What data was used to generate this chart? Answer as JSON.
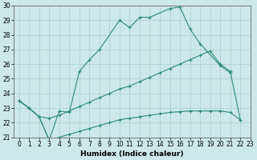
{
  "xlabel": "Humidex (Indice chaleur)",
  "series": {
    "upper": {
      "x": [
        0,
        1,
        2,
        3,
        4,
        5,
        6,
        7,
        8,
        10,
        11,
        12,
        13,
        15,
        16,
        17,
        18,
        20,
        21
      ],
      "y": [
        23.5,
        23.0,
        22.4,
        20.8,
        22.8,
        22.7,
        25.5,
        26.3,
        27.0,
        29.0,
        28.5,
        29.2,
        29.2,
        29.8,
        29.9,
        28.4,
        27.4,
        25.9,
        25.4
      ]
    },
    "mid": {
      "x": [
        0,
        1,
        2,
        3,
        4,
        5,
        6,
        7,
        8,
        9,
        10,
        11,
        12,
        13,
        14,
        15,
        16,
        17,
        18,
        19,
        20,
        21,
        22
      ],
      "y": [
        23.5,
        23.0,
        22.4,
        22.3,
        22.5,
        22.8,
        23.1,
        23.4,
        23.7,
        24.0,
        24.3,
        24.5,
        24.8,
        25.1,
        25.4,
        25.7,
        26.0,
        26.3,
        26.6,
        26.9,
        26.0,
        25.5,
        22.2
      ]
    },
    "lower": {
      "x": [
        0,
        1,
        2,
        3,
        4,
        5,
        6,
        7,
        8,
        9,
        10,
        11,
        12,
        13,
        14,
        15,
        16,
        17,
        18,
        19,
        20,
        21,
        22
      ],
      "y": [
        23.5,
        23.0,
        22.4,
        20.8,
        21.0,
        21.2,
        21.4,
        21.6,
        21.8,
        22.0,
        22.2,
        22.3,
        22.4,
        22.5,
        22.6,
        22.7,
        22.75,
        22.8,
        22.8,
        22.8,
        22.8,
        22.7,
        22.2
      ]
    }
  },
  "line_color": "#2e8b7a",
  "bg_color": "#cde8e8",
  "grid_color": "#aacfcf",
  "ylim": [
    21,
    30
  ],
  "xlim": [
    -0.5,
    23
  ],
  "yticks": [
    21,
    22,
    23,
    24,
    25,
    26,
    27,
    28,
    29,
    30
  ],
  "xticks": [
    0,
    1,
    2,
    3,
    4,
    5,
    6,
    7,
    8,
    9,
    10,
    11,
    12,
    13,
    14,
    15,
    16,
    17,
    18,
    19,
    20,
    21,
    22,
    23
  ],
  "tick_fontsize": 5.5,
  "xlabel_fontsize": 6.5
}
